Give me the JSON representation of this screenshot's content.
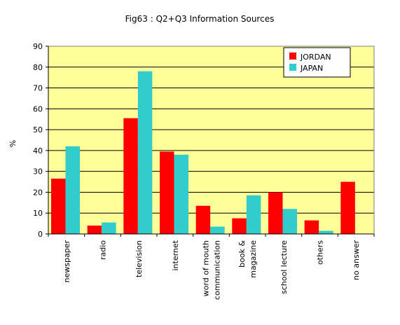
{
  "chart_data": {
    "type": "bar",
    "title": "Fig63 : Q2+Q3  Information Sources",
    "ylabel": "%",
    "xlabel": "",
    "ylim": [
      0,
      90
    ],
    "yticks": [
      0,
      10,
      20,
      30,
      40,
      50,
      60,
      70,
      80,
      90
    ],
    "grid": true,
    "legend_position": "top-right",
    "categories": [
      [
        "newspaper"
      ],
      [
        "radio"
      ],
      [
        "television"
      ],
      [
        "internet"
      ],
      [
        "word of mouth",
        "communication"
      ],
      [
        "book &",
        "magazine"
      ],
      [
        "school lecture"
      ],
      [
        "others"
      ],
      [
        "no answer"
      ]
    ],
    "series": [
      {
        "name": "JORDAN",
        "color": "#ff0000",
        "values": [
          26.5,
          4,
          55.5,
          39.5,
          13.5,
          7.5,
          20,
          6.5,
          25
        ]
      },
      {
        "name": "JAPAN",
        "color": "#33cccc",
        "values": [
          42,
          5.5,
          78,
          38,
          3.5,
          18.5,
          12,
          1.5,
          null
        ]
      }
    ],
    "colors": {
      "plot_background": "#ffff99",
      "grid": "#000000"
    }
  }
}
